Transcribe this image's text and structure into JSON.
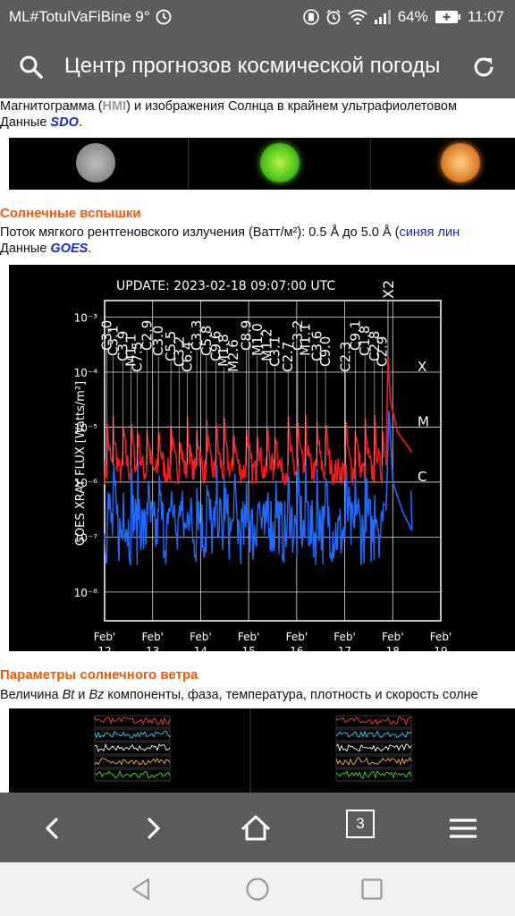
{
  "status_bar": {
    "notification": "ML#TotulVaFiBine 9°",
    "battery": "64%",
    "time": "11:07"
  },
  "app_bar": {
    "title": "Центр прогнозов космической погоды",
    "search_icon": "search-icon",
    "reload_icon": "reload-icon"
  },
  "intro": {
    "line1_a": "Магнитограмма (",
    "line1_hmi": "HMI",
    "line1_b": ") и изображения Солнца в крайнем ультрафиолетовом",
    "line2_a": "Данные ",
    "line2_src": "SDO",
    "line2_b": "."
  },
  "flares": {
    "heading": "Солнечные вспышки",
    "line1_a": "Поток мягкого рентгеновского излучения (Ватт/м²): 0.5 Å до 5.0 Å (",
    "line1_link": "синяя лин",
    "line2_a": "Данные ",
    "line2_src": "GOES",
    "line2_b": "."
  },
  "wind": {
    "heading": "Параметры солнечного ветра",
    "line1_a": "Величина ",
    "bt": "Bt",
    "and": " и ",
    "bz": "Bz",
    "line1_b": " компоненты, фаза, температура, плотность и скорость солне"
  },
  "browser_nav": {
    "back_icon": "back-arrow-icon",
    "forward_icon": "forward-arrow-icon",
    "home_icon": "home-icon",
    "tabs_count": "3",
    "menu_icon": "menu-icon"
  },
  "chart_data": {
    "type": "line",
    "title": "UPDATE: 2023-02-18 09:07:00 UTC",
    "ylabel": "GOES XRAY FLUX [Watts/m²]",
    "yscale": "log",
    "ylim": [
      3e-09,
      0.002
    ],
    "yticks": [
      "10⁻³",
      "10⁻⁴",
      "10⁻⁵",
      "10⁻⁶",
      "10⁻⁷",
      "10⁻⁸"
    ],
    "xticks": [
      {
        "top": "Feb'",
        "bottom": "12"
      },
      {
        "top": "Feb'",
        "bottom": "13"
      },
      {
        "top": "Feb'",
        "bottom": "14"
      },
      {
        "top": "Feb'",
        "bottom": "15"
      },
      {
        "top": "Feb'",
        "bottom": "16"
      },
      {
        "top": "Feb'",
        "bottom": "17"
      },
      {
        "top": "Feb'",
        "bottom": "18"
      },
      {
        "top": "Feb'",
        "bottom": "19"
      }
    ],
    "xlim": [
      12,
      19
    ],
    "class_labels": [
      "X",
      "M",
      "C"
    ],
    "peak_label": "X2",
    "series": [
      {
        "name": "red",
        "color": "#ff1a1a"
      },
      {
        "name": "blue",
        "color": "#1f6bff"
      }
    ],
    "flare_labels": [
      {
        "day": 12.05,
        "label": "C3.0"
      },
      {
        "day": 12.18,
        "label": "C3.1"
      },
      {
        "day": 12.38,
        "label": "C3.9"
      },
      {
        "day": 12.55,
        "label": "M1.1"
      },
      {
        "day": 12.68,
        "label": "C7.5"
      },
      {
        "day": 12.88,
        "label": "C2.9"
      },
      {
        "day": 13.12,
        "label": "C3.0"
      },
      {
        "day": 13.38,
        "label": "C5.5"
      },
      {
        "day": 13.55,
        "label": "C3.2"
      },
      {
        "day": 13.72,
        "label": "C6.4"
      },
      {
        "day": 13.92,
        "label": "C3.3"
      },
      {
        "day": 14.12,
        "label": "C5.8"
      },
      {
        "day": 14.32,
        "label": "C9.6"
      },
      {
        "day": 14.48,
        "label": "M1.8"
      },
      {
        "day": 14.68,
        "label": "M2.6"
      },
      {
        "day": 14.95,
        "label": "C8.9"
      },
      {
        "day": 15.18,
        "label": "M1.0"
      },
      {
        "day": 15.38,
        "label": "M1.2"
      },
      {
        "day": 15.55,
        "label": "C3.1"
      },
      {
        "day": 15.82,
        "label": "C2.7"
      },
      {
        "day": 16.02,
        "label": "C3.2"
      },
      {
        "day": 16.18,
        "label": "M1.1"
      },
      {
        "day": 16.42,
        "label": "C3.6"
      },
      {
        "day": 16.6,
        "label": "C9.0"
      },
      {
        "day": 17.02,
        "label": "C2.3"
      },
      {
        "day": 17.22,
        "label": "C9.1"
      },
      {
        "day": 17.42,
        "label": "C1.8"
      },
      {
        "day": 17.62,
        "label": "C2.8"
      },
      {
        "day": 17.78,
        "label": "C2.9"
      }
    ]
  }
}
